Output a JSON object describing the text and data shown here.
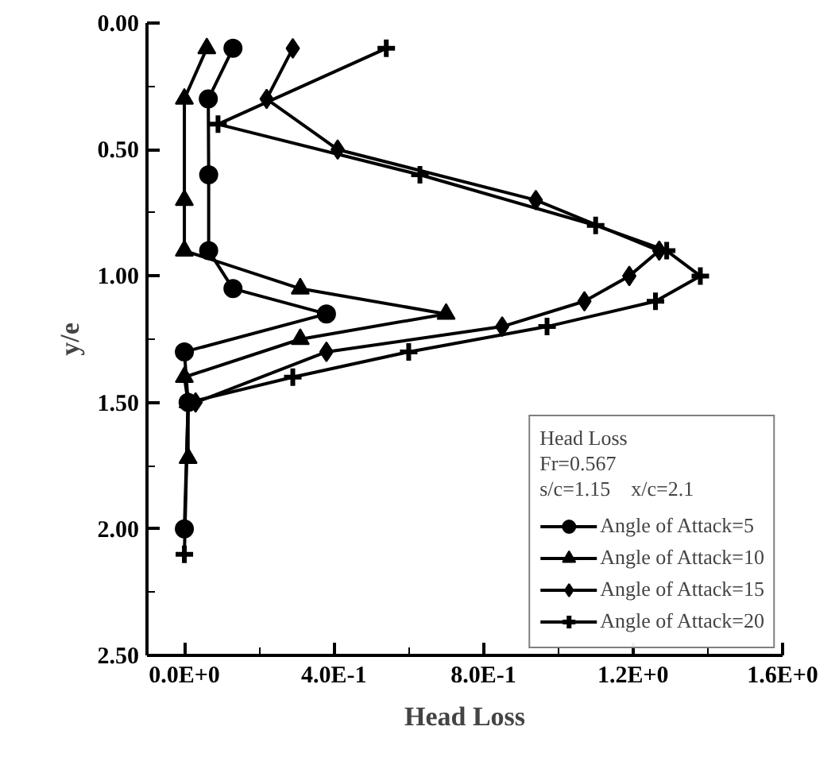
{
  "chart_data": {
    "type": "line",
    "xlabel": "Head Loss",
    "ylabel": "y/e",
    "legend_title": "Head Loss",
    "annotations": [
      "Fr=0.567",
      "s/c=1.15    x/c=2.1"
    ],
    "legend": "bottom right",
    "grid": false,
    "xlim": [
      -0.1,
      1.6
    ],
    "ylim": [
      2.5,
      0
    ],
    "xticks": [
      {
        "value": 0,
        "label": "0.0E+0"
      },
      {
        "value": 0.2,
        "label": null
      },
      {
        "value": 0.4,
        "label": "4.0E-1"
      },
      {
        "value": 0.6,
        "label": null
      },
      {
        "value": 0.8,
        "label": "8.0E-1"
      },
      {
        "value": 1.0,
        "label": null
      },
      {
        "value": 1.2,
        "label": "1.2E+0"
      },
      {
        "value": 1.4,
        "label": null
      },
      {
        "value": 1.6,
        "label": "1.6E+0"
      }
    ],
    "yticks": [
      {
        "value": 0,
        "label": "0.00"
      },
      {
        "value": 0.25,
        "label": null
      },
      {
        "value": 0.5,
        "label": "0.50"
      },
      {
        "value": 0.75,
        "label": null
      },
      {
        "value": 1.0,
        "label": "1.00"
      },
      {
        "value": 1.25,
        "label": null
      },
      {
        "value": 1.5,
        "label": "1.50"
      },
      {
        "value": 1.75,
        "label": null
      },
      {
        "value": 2.0,
        "label": "2.00"
      },
      {
        "value": 2.25,
        "label": null
      },
      {
        "value": 2.5,
        "label": "2.50"
      }
    ],
    "series": [
      {
        "name": "Angle of Attack=5",
        "color": "#000000",
        "marker": "circle",
        "x": [
          0.13,
          0.064,
          0.065,
          0.065,
          0.13,
          0.38,
          0.0,
          0.01,
          0.0
        ],
        "values": [
          0.1,
          0.3,
          0.6,
          0.9,
          1.05,
          1.15,
          1.3,
          1.5,
          2.0
        ]
      },
      {
        "name": "Angle of Attack=10",
        "color": "#000000",
        "marker": "triangle",
        "x": [
          0.06,
          0.0,
          0.0,
          0.0,
          0.31,
          0.7,
          0.31,
          0.0,
          0.01,
          0.01
        ],
        "values": [
          0.1,
          0.3,
          0.7,
          0.9,
          1.05,
          1.15,
          1.25,
          1.4,
          1.5,
          1.72
        ]
      },
      {
        "name": "Angle of Attack=15",
        "color": "#000000",
        "marker": "diamond",
        "x": [
          0.29,
          0.22,
          0.41,
          0.94,
          1.27,
          1.19,
          1.07,
          0.85,
          0.38,
          0.03
        ],
        "values": [
          0.1,
          0.3,
          0.5,
          0.7,
          0.9,
          1.0,
          1.1,
          1.2,
          1.3,
          1.5
        ]
      },
      {
        "name": "Angle of Attack=20",
        "color": "#000000",
        "marker": "cross",
        "x": [
          0.54,
          0.09,
          0.63,
          1.1,
          1.29,
          1.38,
          1.26,
          0.97,
          0.6,
          0.29,
          0.01,
          0.0
        ],
        "values": [
          0.1,
          0.4,
          0.6,
          0.8,
          0.9,
          1.0,
          1.1,
          1.2,
          1.3,
          1.4,
          1.5,
          2.1
        ]
      }
    ]
  }
}
